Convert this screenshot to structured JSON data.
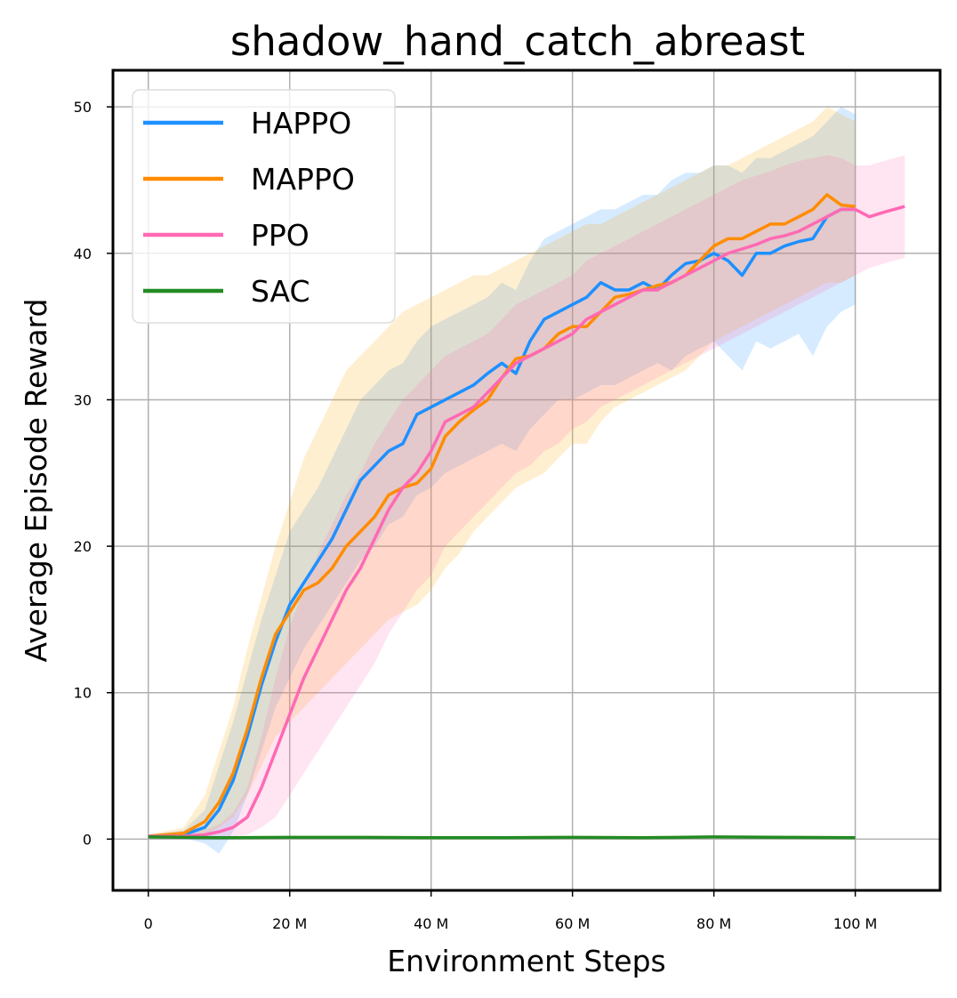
{
  "chart_data": {
    "type": "line",
    "title": "shadow_hand_catch_abreast",
    "xlabel": "Environment Steps",
    "ylabel": "Average Episode Reward",
    "xlim": [
      -5,
      112
    ],
    "ylim": [
      -3.5,
      52.5
    ],
    "grid": true,
    "legend_position": "top-left",
    "x_ticks": [
      0,
      20,
      40,
      60,
      80,
      100
    ],
    "x_tick_labels": [
      "0",
      "20 M",
      "40 M",
      "60 M",
      "80 M",
      "100 M"
    ],
    "y_ticks": [
      0,
      10,
      20,
      30,
      40,
      50
    ],
    "y_tick_labels": [
      "0",
      "10",
      "20",
      "30",
      "40",
      "50"
    ],
    "series": [
      {
        "name": "HAPPO",
        "color": "#1e90ff",
        "band_color": "#1e90ff",
        "x": [
          0,
          5,
          8,
          10,
          12,
          14,
          16,
          18,
          20,
          22,
          24,
          26,
          28,
          30,
          32,
          34,
          36,
          38,
          40,
          42,
          44,
          46,
          48,
          50,
          52,
          54,
          56,
          58,
          60,
          62,
          64,
          66,
          68,
          70,
          72,
          74,
          76,
          78,
          80,
          82,
          84,
          86,
          88,
          90,
          92,
          94,
          96,
          98,
          100
        ],
        "values": [
          0.2,
          0.3,
          0.8,
          2,
          4,
          7,
          10.5,
          13.5,
          16,
          17.5,
          19,
          20.5,
          22.5,
          24.5,
          25.5,
          26.5,
          27,
          29,
          29.5,
          30,
          30.5,
          31,
          31.8,
          32.5,
          31.8,
          34,
          35.5,
          36,
          36.5,
          37,
          38,
          37.5,
          37.5,
          38,
          37.5,
          38.5,
          39.3,
          39.5,
          40,
          39.5,
          38.5,
          40,
          40,
          40.5,
          40.8,
          41,
          42.5,
          43,
          43
        ],
        "lower": [
          0.1,
          0.1,
          -0.3,
          -1,
          0.5,
          3,
          6,
          9,
          11,
          13,
          14.5,
          16,
          17.5,
          19,
          20,
          21.5,
          22,
          23.5,
          24,
          25,
          25.5,
          26,
          26.5,
          27,
          26.5,
          28,
          29,
          30,
          30,
          30.5,
          31,
          31,
          31.5,
          32,
          32.5,
          32,
          33,
          33.5,
          34,
          33,
          32,
          34,
          33.5,
          34,
          34.5,
          33,
          35,
          36,
          36.5
        ],
        "upper": [
          0.3,
          0.6,
          2,
          5,
          8,
          11.5,
          15,
          18,
          21,
          22.5,
          24,
          26,
          28,
          30,
          31,
          32,
          32.5,
          34,
          35,
          35.5,
          36,
          36.5,
          37,
          38,
          37.5,
          39.5,
          41,
          41.5,
          42,
          42.5,
          43,
          43,
          43.5,
          44,
          44,
          45,
          45.5,
          45.5,
          46,
          46,
          45.5,
          46.5,
          46.5,
          47,
          47.5,
          48,
          49,
          50,
          49.5
        ]
      },
      {
        "name": "MAPPO",
        "color": "#ff8c00",
        "band_color": "#ffa500",
        "x": [
          0,
          5,
          8,
          10,
          12,
          14,
          16,
          18,
          20,
          22,
          24,
          26,
          28,
          30,
          32,
          34,
          36,
          38,
          40,
          42,
          44,
          46,
          48,
          50,
          52,
          54,
          56,
          58,
          60,
          62,
          64,
          66,
          68,
          70,
          72,
          74,
          76,
          78,
          80,
          82,
          84,
          86,
          88,
          90,
          92,
          94,
          96,
          98,
          100
        ],
        "values": [
          0.2,
          0.4,
          1.2,
          2.5,
          4.5,
          7.5,
          11,
          14,
          15.5,
          17,
          17.5,
          18.5,
          20,
          21,
          22,
          23.5,
          24,
          24.3,
          25.3,
          27.5,
          28.5,
          29.3,
          30,
          31.5,
          32.8,
          33,
          33.5,
          34.5,
          35,
          35,
          36,
          37,
          37.2,
          37.5,
          37.8,
          38,
          38.5,
          39.5,
          40.5,
          41,
          41,
          41.5,
          42,
          42,
          42.5,
          43,
          44,
          43.3,
          43.2
        ],
        "lower": [
          0.1,
          0.2,
          0.3,
          0.8,
          1.5,
          3,
          5,
          7,
          8,
          9,
          10,
          11,
          12,
          13,
          14,
          15,
          15.5,
          16,
          17,
          18.5,
          19.5,
          21,
          22,
          23,
          24,
          24.5,
          25,
          26,
          27,
          27,
          28.5,
          29.5,
          30,
          30.5,
          31,
          31.5,
          32,
          33,
          34,
          34.5,
          35,
          35.5,
          36,
          36.5,
          37,
          37.5,
          38,
          38,
          38.5
        ],
        "upper": [
          0.3,
          0.8,
          3,
          6,
          9,
          13,
          16.5,
          20,
          23,
          26,
          28,
          30,
          32,
          33,
          34,
          35,
          36,
          36.5,
          37,
          37.5,
          38,
          38.5,
          38.5,
          39,
          39.5,
          40,
          40.5,
          41,
          41.5,
          42,
          42,
          42.5,
          43,
          43.5,
          44,
          44.5,
          45,
          45.5,
          46,
          46,
          46.5,
          47,
          47.5,
          48,
          48.5,
          49,
          50,
          49.5,
          49
        ]
      },
      {
        "name": "PPO",
        "color": "#ff69b4",
        "band_color": "#ff69b4",
        "x": [
          0,
          5,
          8,
          10,
          12,
          14,
          16,
          18,
          20,
          22,
          24,
          26,
          28,
          30,
          32,
          34,
          36,
          38,
          40,
          42,
          44,
          46,
          48,
          50,
          52,
          54,
          56,
          58,
          60,
          62,
          64,
          66,
          68,
          70,
          72,
          74,
          76,
          78,
          80,
          82,
          84,
          86,
          88,
          90,
          92,
          94,
          96,
          98,
          100,
          102,
          104,
          107
        ],
        "values": [
          0.2,
          0.2,
          0.3,
          0.5,
          0.8,
          1.5,
          3.5,
          6,
          8.5,
          11,
          13,
          15,
          17,
          18.5,
          20.5,
          22.5,
          24,
          25,
          26.5,
          28.5,
          29,
          29.5,
          30.5,
          31.5,
          32.5,
          33,
          33.5,
          34,
          34.5,
          35.5,
          36,
          36.5,
          37,
          37.5,
          37.5,
          38,
          38.5,
          39,
          39.5,
          40,
          40.3,
          40.6,
          41,
          41.2,
          41.5,
          42,
          42.5,
          43,
          43,
          42.5,
          42.8,
          43.2
        ],
        "lower": [
          0.1,
          0.1,
          0.1,
          0.1,
          0.2,
          0.3,
          0.8,
          1.5,
          3,
          4.5,
          6,
          7.5,
          9,
          10.5,
          12,
          14,
          15.5,
          17,
          18,
          20,
          21,
          22,
          23,
          24,
          25,
          25.5,
          26.5,
          27,
          28,
          28.5,
          29.5,
          30,
          30.5,
          31,
          31.5,
          32,
          32.5,
          33,
          33.5,
          34,
          34.5,
          35,
          35.5,
          36,
          36.5,
          37,
          37.5,
          38,
          38.5,
          39,
          39.3,
          39.7
        ],
        "upper": [
          0.3,
          0.3,
          0.6,
          1,
          1.8,
          3.5,
          7,
          11,
          14.5,
          17,
          19.5,
          21.5,
          23.5,
          25,
          27,
          28.5,
          30,
          31,
          32,
          33,
          33.5,
          34,
          34.5,
          35.5,
          36.5,
          37,
          37.5,
          38,
          38.5,
          39.5,
          40,
          40.5,
          41,
          41.5,
          42,
          42.5,
          43,
          43.5,
          44,
          44.5,
          45,
          45.3,
          45.6,
          46,
          46.3,
          46.5,
          46.7,
          46.5,
          46,
          46,
          46.3,
          46.7
        ]
      },
      {
        "name": "SAC",
        "color": "#228b22",
        "band_color": "#228b22",
        "x": [
          0,
          10,
          20,
          30,
          40,
          50,
          60,
          70,
          80,
          90,
          100
        ],
        "values": [
          0.15,
          0.1,
          0.12,
          0.12,
          0.1,
          0.1,
          0.12,
          0.1,
          0.15,
          0.12,
          0.1
        ],
        "lower": [
          0.1,
          0.05,
          0.07,
          0.07,
          0.05,
          0.05,
          0.07,
          0.05,
          0.1,
          0.07,
          0.05
        ],
        "upper": [
          0.2,
          0.15,
          0.17,
          0.17,
          0.15,
          0.15,
          0.17,
          0.15,
          0.2,
          0.17,
          0.15
        ]
      }
    ]
  }
}
